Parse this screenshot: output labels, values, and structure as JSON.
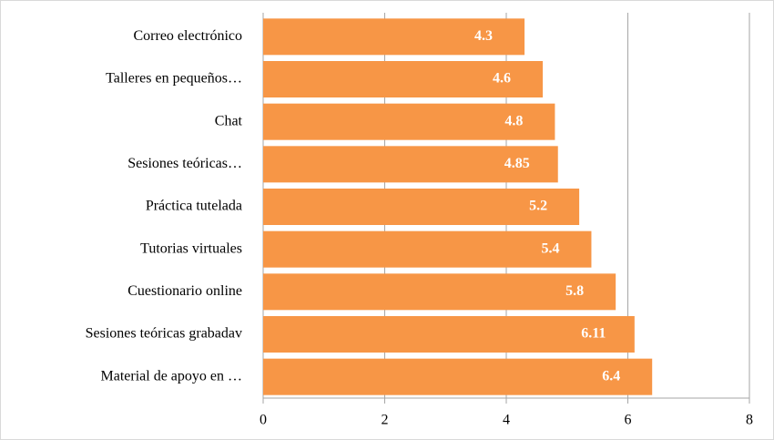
{
  "chart_data": {
    "type": "bar",
    "orientation": "horizontal",
    "categories": [
      "Correo electrónico",
      "Talleres en pequeños…",
      "Chat",
      "Sesiones teóricas…",
      "Práctica tutelada",
      "Tutorias virtuales",
      "Cuestionario online",
      "Sesiones teóricas grabadav",
      "Material de apoyo en …"
    ],
    "values": [
      4.3,
      4.6,
      4.8,
      4.85,
      5.2,
      5.4,
      5.8,
      6.11,
      6.4
    ],
    "color": "#f79646",
    "xlim": [
      0,
      8
    ],
    "xticks": [
      0,
      2,
      4,
      6,
      8
    ],
    "grid": true
  }
}
